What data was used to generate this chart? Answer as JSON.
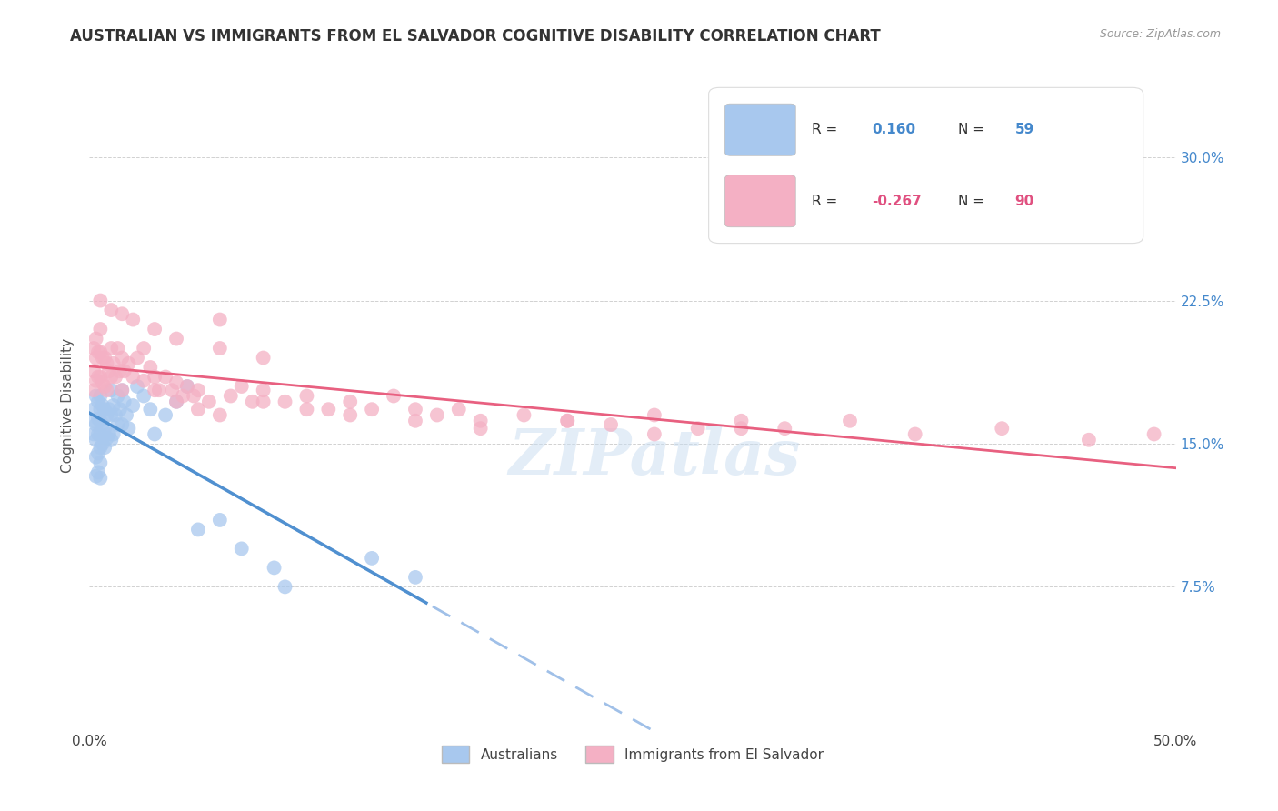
{
  "title": "AUSTRALIAN VS IMMIGRANTS FROM EL SALVADOR COGNITIVE DISABILITY CORRELATION CHART",
  "source": "Source: ZipAtlas.com",
  "ylabel": "Cognitive Disability",
  "ytick_labels": [
    "7.5%",
    "15.0%",
    "22.5%",
    "30.0%"
  ],
  "ytick_values": [
    0.075,
    0.15,
    0.225,
    0.3
  ],
  "xlim": [
    0.0,
    0.5
  ],
  "ylim": [
    0.0,
    0.34
  ],
  "legend_r_blue": "0.160",
  "legend_n_blue": "59",
  "legend_r_pink": "-0.267",
  "legend_n_pink": "90",
  "blue_label": "Australians",
  "pink_label": "Immigrants from El Salvador",
  "background_color": "#ffffff",
  "blue_color": "#A8C8EE",
  "pink_color": "#F4B0C4",
  "blue_line_color": "#5090D0",
  "pink_line_color": "#E86080",
  "blue_dash_line_color": "#A0C0E8",
  "watermark": "ZIPatlas",
  "aus_x": [
    0.002,
    0.002,
    0.002,
    0.003,
    0.003,
    0.003,
    0.003,
    0.003,
    0.004,
    0.004,
    0.004,
    0.004,
    0.004,
    0.005,
    0.005,
    0.005,
    0.005,
    0.005,
    0.005,
    0.005,
    0.006,
    0.006,
    0.006,
    0.007,
    0.007,
    0.007,
    0.008,
    0.008,
    0.009,
    0.009,
    0.01,
    0.01,
    0.01,
    0.011,
    0.011,
    0.012,
    0.013,
    0.013,
    0.014,
    0.015,
    0.015,
    0.016,
    0.017,
    0.018,
    0.02,
    0.022,
    0.025,
    0.028,
    0.03,
    0.035,
    0.04,
    0.045,
    0.05,
    0.06,
    0.07,
    0.085,
    0.09,
    0.13,
    0.15
  ],
  "aus_y": [
    0.168,
    0.162,
    0.155,
    0.175,
    0.16,
    0.152,
    0.143,
    0.133,
    0.172,
    0.163,
    0.155,
    0.145,
    0.135,
    0.175,
    0.168,
    0.162,
    0.155,
    0.148,
    0.14,
    0.132,
    0.17,
    0.16,
    0.15,
    0.168,
    0.158,
    0.148,
    0.165,
    0.153,
    0.168,
    0.155,
    0.178,
    0.165,
    0.152,
    0.17,
    0.155,
    0.165,
    0.175,
    0.16,
    0.168,
    0.178,
    0.16,
    0.172,
    0.165,
    0.158,
    0.17,
    0.18,
    0.175,
    0.168,
    0.155,
    0.165,
    0.172,
    0.18,
    0.105,
    0.11,
    0.095,
    0.085,
    0.075,
    0.09,
    0.08
  ],
  "sal_x": [
    0.002,
    0.002,
    0.002,
    0.003,
    0.003,
    0.003,
    0.004,
    0.004,
    0.005,
    0.005,
    0.005,
    0.006,
    0.006,
    0.007,
    0.007,
    0.008,
    0.008,
    0.009,
    0.01,
    0.01,
    0.011,
    0.012,
    0.013,
    0.014,
    0.015,
    0.015,
    0.016,
    0.018,
    0.02,
    0.022,
    0.025,
    0.025,
    0.028,
    0.03,
    0.032,
    0.035,
    0.038,
    0.04,
    0.043,
    0.045,
    0.048,
    0.05,
    0.055,
    0.06,
    0.065,
    0.07,
    0.075,
    0.08,
    0.09,
    0.1,
    0.11,
    0.12,
    0.13,
    0.14,
    0.15,
    0.16,
    0.17,
    0.18,
    0.2,
    0.22,
    0.24,
    0.26,
    0.28,
    0.3,
    0.32,
    0.35,
    0.38,
    0.42,
    0.46,
    0.49,
    0.03,
    0.04,
    0.05,
    0.06,
    0.08,
    0.1,
    0.12,
    0.15,
    0.18,
    0.22,
    0.26,
    0.3,
    0.005,
    0.01,
    0.015,
    0.02,
    0.03,
    0.04,
    0.06,
    0.08
  ],
  "sal_y": [
    0.2,
    0.188,
    0.178,
    0.205,
    0.195,
    0.183,
    0.198,
    0.185,
    0.21,
    0.198,
    0.185,
    0.195,
    0.182,
    0.195,
    0.18,
    0.192,
    0.178,
    0.188,
    0.2,
    0.185,
    0.192,
    0.185,
    0.2,
    0.188,
    0.195,
    0.178,
    0.188,
    0.192,
    0.185,
    0.195,
    0.2,
    0.183,
    0.19,
    0.185,
    0.178,
    0.185,
    0.178,
    0.182,
    0.175,
    0.18,
    0.175,
    0.178,
    0.172,
    0.215,
    0.175,
    0.18,
    0.172,
    0.178,
    0.172,
    0.175,
    0.168,
    0.172,
    0.168,
    0.175,
    0.168,
    0.165,
    0.168,
    0.162,
    0.165,
    0.162,
    0.16,
    0.165,
    0.158,
    0.162,
    0.158,
    0.162,
    0.155,
    0.158,
    0.152,
    0.155,
    0.178,
    0.172,
    0.168,
    0.165,
    0.172,
    0.168,
    0.165,
    0.162,
    0.158,
    0.162,
    0.155,
    0.158,
    0.225,
    0.22,
    0.218,
    0.215,
    0.21,
    0.205,
    0.2,
    0.195
  ]
}
